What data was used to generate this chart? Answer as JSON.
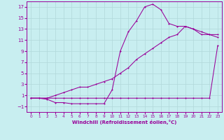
{
  "xlabel": "Windchill (Refroidissement éolien,°C)",
  "background_color": "#c8eef0",
  "grid_color": "#b0d8da",
  "line_color": "#990099",
  "x_ticks": [
    0,
    1,
    2,
    3,
    4,
    5,
    6,
    7,
    8,
    9,
    10,
    11,
    12,
    13,
    14,
    15,
    16,
    17,
    18,
    19,
    20,
    21,
    22,
    23
  ],
  "y_ticks": [
    -1,
    1,
    3,
    5,
    7,
    9,
    11,
    13,
    15,
    17
  ],
  "ylim": [
    -2.0,
    18.0
  ],
  "xlim": [
    -0.5,
    23.5
  ],
  "line1_x": [
    0,
    1,
    2,
    3,
    4,
    5,
    6,
    7,
    8,
    9,
    10,
    11,
    12,
    13,
    14,
    15,
    16,
    17,
    18,
    19,
    20,
    21,
    22,
    23
  ],
  "line1_y": [
    0.5,
    0.5,
    0.3,
    -0.3,
    -0.3,
    -0.5,
    -0.5,
    -0.5,
    -0.5,
    -0.5,
    2.0,
    9.0,
    12.5,
    14.5,
    17.0,
    17.5,
    16.5,
    14.0,
    13.5,
    13.5,
    13.0,
    12.0,
    12.0,
    11.5
  ],
  "line2_x": [
    0,
    1,
    2,
    3,
    4,
    5,
    6,
    7,
    8,
    9,
    10,
    11,
    12,
    13,
    14,
    15,
    16,
    17,
    18,
    19,
    20,
    21,
    22,
    23
  ],
  "line2_y": [
    0.5,
    0.5,
    0.5,
    1.0,
    1.5,
    2.0,
    2.5,
    2.5,
    3.0,
    3.5,
    4.0,
    5.0,
    6.0,
    7.5,
    8.5,
    9.5,
    10.5,
    11.5,
    12.0,
    13.5,
    13.0,
    12.5,
    12.0,
    12.0
  ],
  "line3_x": [
    0,
    2,
    3,
    4,
    5,
    6,
    7,
    8,
    9,
    10,
    11,
    12,
    13,
    14,
    15,
    16,
    17,
    18,
    19,
    20,
    21,
    22,
    23
  ],
  "line3_y": [
    0.5,
    0.5,
    0.5,
    0.5,
    0.5,
    0.5,
    0.5,
    0.5,
    0.5,
    0.5,
    0.5,
    0.5,
    0.5,
    0.5,
    0.5,
    0.5,
    0.5,
    0.5,
    0.5,
    0.5,
    0.5,
    0.5,
    10.0
  ]
}
